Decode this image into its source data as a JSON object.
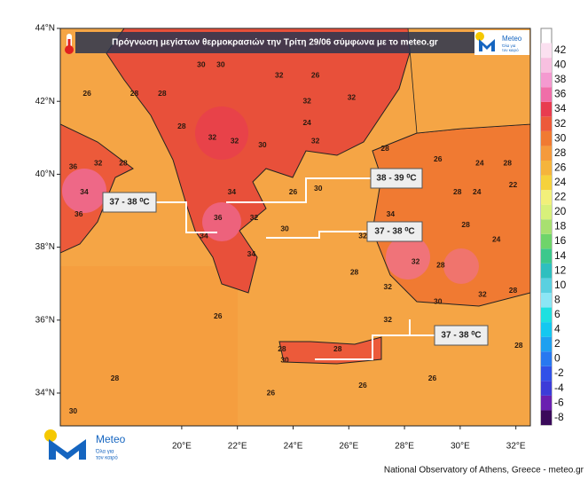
{
  "map": {
    "title": "Πρόγνωση μεγίστων θερμοκρασιών  την Τρίτη 29/06 σύμφωνα με το meteo.gr",
    "lonlim": [
      15.64,
      32.52
    ],
    "latlim": [
      33.1,
      44.0
    ],
    "lon_ticks": [
      {
        "value": 20,
        "label": "20°E"
      },
      {
        "value": 22,
        "label": "22°E"
      },
      {
        "value": 24,
        "label": "24°E"
      },
      {
        "value": 26,
        "label": "26°E"
      },
      {
        "value": 28,
        "label": "28°E"
      },
      {
        "value": 30,
        "label": "30°E"
      },
      {
        "value": 32,
        "label": "32°E"
      }
    ],
    "lat_ticks": [
      {
        "value": 44,
        "label": "44°N"
      },
      {
        "value": 42,
        "label": "42°N"
      },
      {
        "value": 40,
        "label": "40°N"
      },
      {
        "value": 38,
        "label": "38°N"
      },
      {
        "value": 36,
        "label": "36°N"
      },
      {
        "value": 34,
        "label": "34°N"
      }
    ],
    "colorbar": {
      "values": [
        -8,
        -6,
        -4,
        -2,
        0,
        2,
        4,
        6,
        8,
        10,
        12,
        14,
        16,
        18,
        20,
        22,
        24,
        26,
        28,
        30,
        32,
        34,
        36,
        38,
        40,
        42
      ],
      "colors": [
        "#3a0a5a",
        "#6a1fb0",
        "#3c3cd8",
        "#3050e8",
        "#2878f0",
        "#1ea0f0",
        "#14c8f0",
        "#1ee0e0",
        "#8ce6f5",
        "#5ad0e0",
        "#2fbfbf",
        "#3cc88c",
        "#6fd46a",
        "#a8e070",
        "#d8f07a",
        "#f2f07a",
        "#f5d23c",
        "#f5b43c",
        "#f59a3c",
        "#f07a32",
        "#ec5a3a",
        "#e83c50",
        "#f06ea8",
        "#f49ad0",
        "#f8c0e0",
        "#fbe0f0"
      ]
    },
    "callouts": [
      "37 - 38 ⁰C",
      "38 - 39 ⁰C",
      "37 - 38 ⁰C",
      "37 - 38 ⁰C"
    ],
    "labels": [
      {
        "value": 26,
        "lon": 16.6,
        "lat": 42.2
      },
      {
        "value": 28,
        "lon": 18.3,
        "lat": 42.2
      },
      {
        "value": 28,
        "lon": 19.3,
        "lat": 42.2
      },
      {
        "value": 30,
        "lon": 20.7,
        "lat": 43.0
      },
      {
        "value": 30,
        "lon": 21.4,
        "lat": 43.0
      },
      {
        "value": 32,
        "lon": 23.5,
        "lat": 42.7
      },
      {
        "value": 26,
        "lon": 24.8,
        "lat": 42.7
      },
      {
        "value": 32,
        "lon": 24.5,
        "lat": 42.0
      },
      {
        "value": 24,
        "lon": 24.5,
        "lat": 41.4
      },
      {
        "value": 28,
        "lon": 20.0,
        "lat": 41.3
      },
      {
        "value": 32,
        "lon": 21.1,
        "lat": 41.0
      },
      {
        "value": 32,
        "lon": 21.9,
        "lat": 40.9
      },
      {
        "value": 30,
        "lon": 22.9,
        "lat": 40.8
      },
      {
        "value": 32,
        "lon": 24.8,
        "lat": 40.9
      },
      {
        "value": 32,
        "lon": 26.1,
        "lat": 42.1
      },
      {
        "value": 28,
        "lon": 27.3,
        "lat": 40.7
      },
      {
        "value": 26,
        "lon": 29.2,
        "lat": 40.4
      },
      {
        "value": 24,
        "lon": 30.7,
        "lat": 40.3
      },
      {
        "value": 28,
        "lon": 31.7,
        "lat": 40.3
      },
      {
        "value": 22,
        "lon": 31.9,
        "lat": 39.7
      },
      {
        "value": 24,
        "lon": 30.6,
        "lat": 39.5
      },
      {
        "value": 28,
        "lon": 29.9,
        "lat": 39.5
      },
      {
        "value": 34,
        "lon": 27.5,
        "lat": 38.9
      },
      {
        "value": 28,
        "lon": 30.2,
        "lat": 38.6
      },
      {
        "value": 24,
        "lon": 31.3,
        "lat": 38.2
      },
      {
        "value": 28,
        "lon": 29.3,
        "lat": 37.5
      },
      {
        "value": 32,
        "lon": 28.4,
        "lat": 37.6
      },
      {
        "value": 28,
        "lon": 31.9,
        "lat": 36.8
      },
      {
        "value": 28,
        "lon": 32.1,
        "lat": 35.3
      },
      {
        "value": 26,
        "lon": 29.0,
        "lat": 34.4
      },
      {
        "value": 26,
        "lon": 26.5,
        "lat": 34.2
      },
      {
        "value": 26,
        "lon": 23.2,
        "lat": 34.0
      },
      {
        "value": 28,
        "lon": 17.6,
        "lat": 34.4
      },
      {
        "value": 30,
        "lon": 16.1,
        "lat": 33.5
      },
      {
        "value": 26,
        "lon": 21.3,
        "lat": 36.1
      },
      {
        "value": 28,
        "lon": 23.6,
        "lat": 35.2
      },
      {
        "value": 30,
        "lon": 23.7,
        "lat": 34.9
      },
      {
        "value": 28,
        "lon": 25.6,
        "lat": 35.2
      },
      {
        "value": 36,
        "lon": 16.3,
        "lat": 38.9
      },
      {
        "value": 36,
        "lon": 16.1,
        "lat": 40.2
      },
      {
        "value": 34,
        "lon": 16.5,
        "lat": 39.5
      },
      {
        "value": 32,
        "lon": 17.0,
        "lat": 40.3
      },
      {
        "value": 28,
        "lon": 17.9,
        "lat": 40.3
      },
      {
        "value": 32,
        "lon": 22.6,
        "lat": 38.8
      },
      {
        "value": 30,
        "lon": 23.7,
        "lat": 38.5
      },
      {
        "value": 34,
        "lon": 22.5,
        "lat": 37.8
      },
      {
        "value": 34,
        "lon": 20.8,
        "lat": 38.3
      },
      {
        "value": 34,
        "lon": 21.8,
        "lat": 39.5
      },
      {
        "value": 36,
        "lon": 21.3,
        "lat": 38.8
      },
      {
        "value": 26,
        "lon": 24.0,
        "lat": 39.5
      },
      {
        "value": 30,
        "lon": 24.9,
        "lat": 39.6
      },
      {
        "value": 32,
        "lon": 26.5,
        "lat": 38.3
      },
      {
        "value": 28,
        "lon": 26.2,
        "lat": 37.3
      },
      {
        "value": 32,
        "lon": 27.4,
        "lat": 36.0
      },
      {
        "value": 30,
        "lon": 29.2,
        "lat": 36.5
      },
      {
        "value": 32,
        "lon": 30.8,
        "lat": 36.7
      },
      {
        "value": 32,
        "lon": 27.4,
        "lat": 36.9
      }
    ]
  },
  "logo": {
    "name": "Meteo",
    "tagline_1": "Όλα για",
    "tagline_2": "τον καιρό"
  },
  "footer": "National Observatory of Athens, Greece - meteo.gr"
}
